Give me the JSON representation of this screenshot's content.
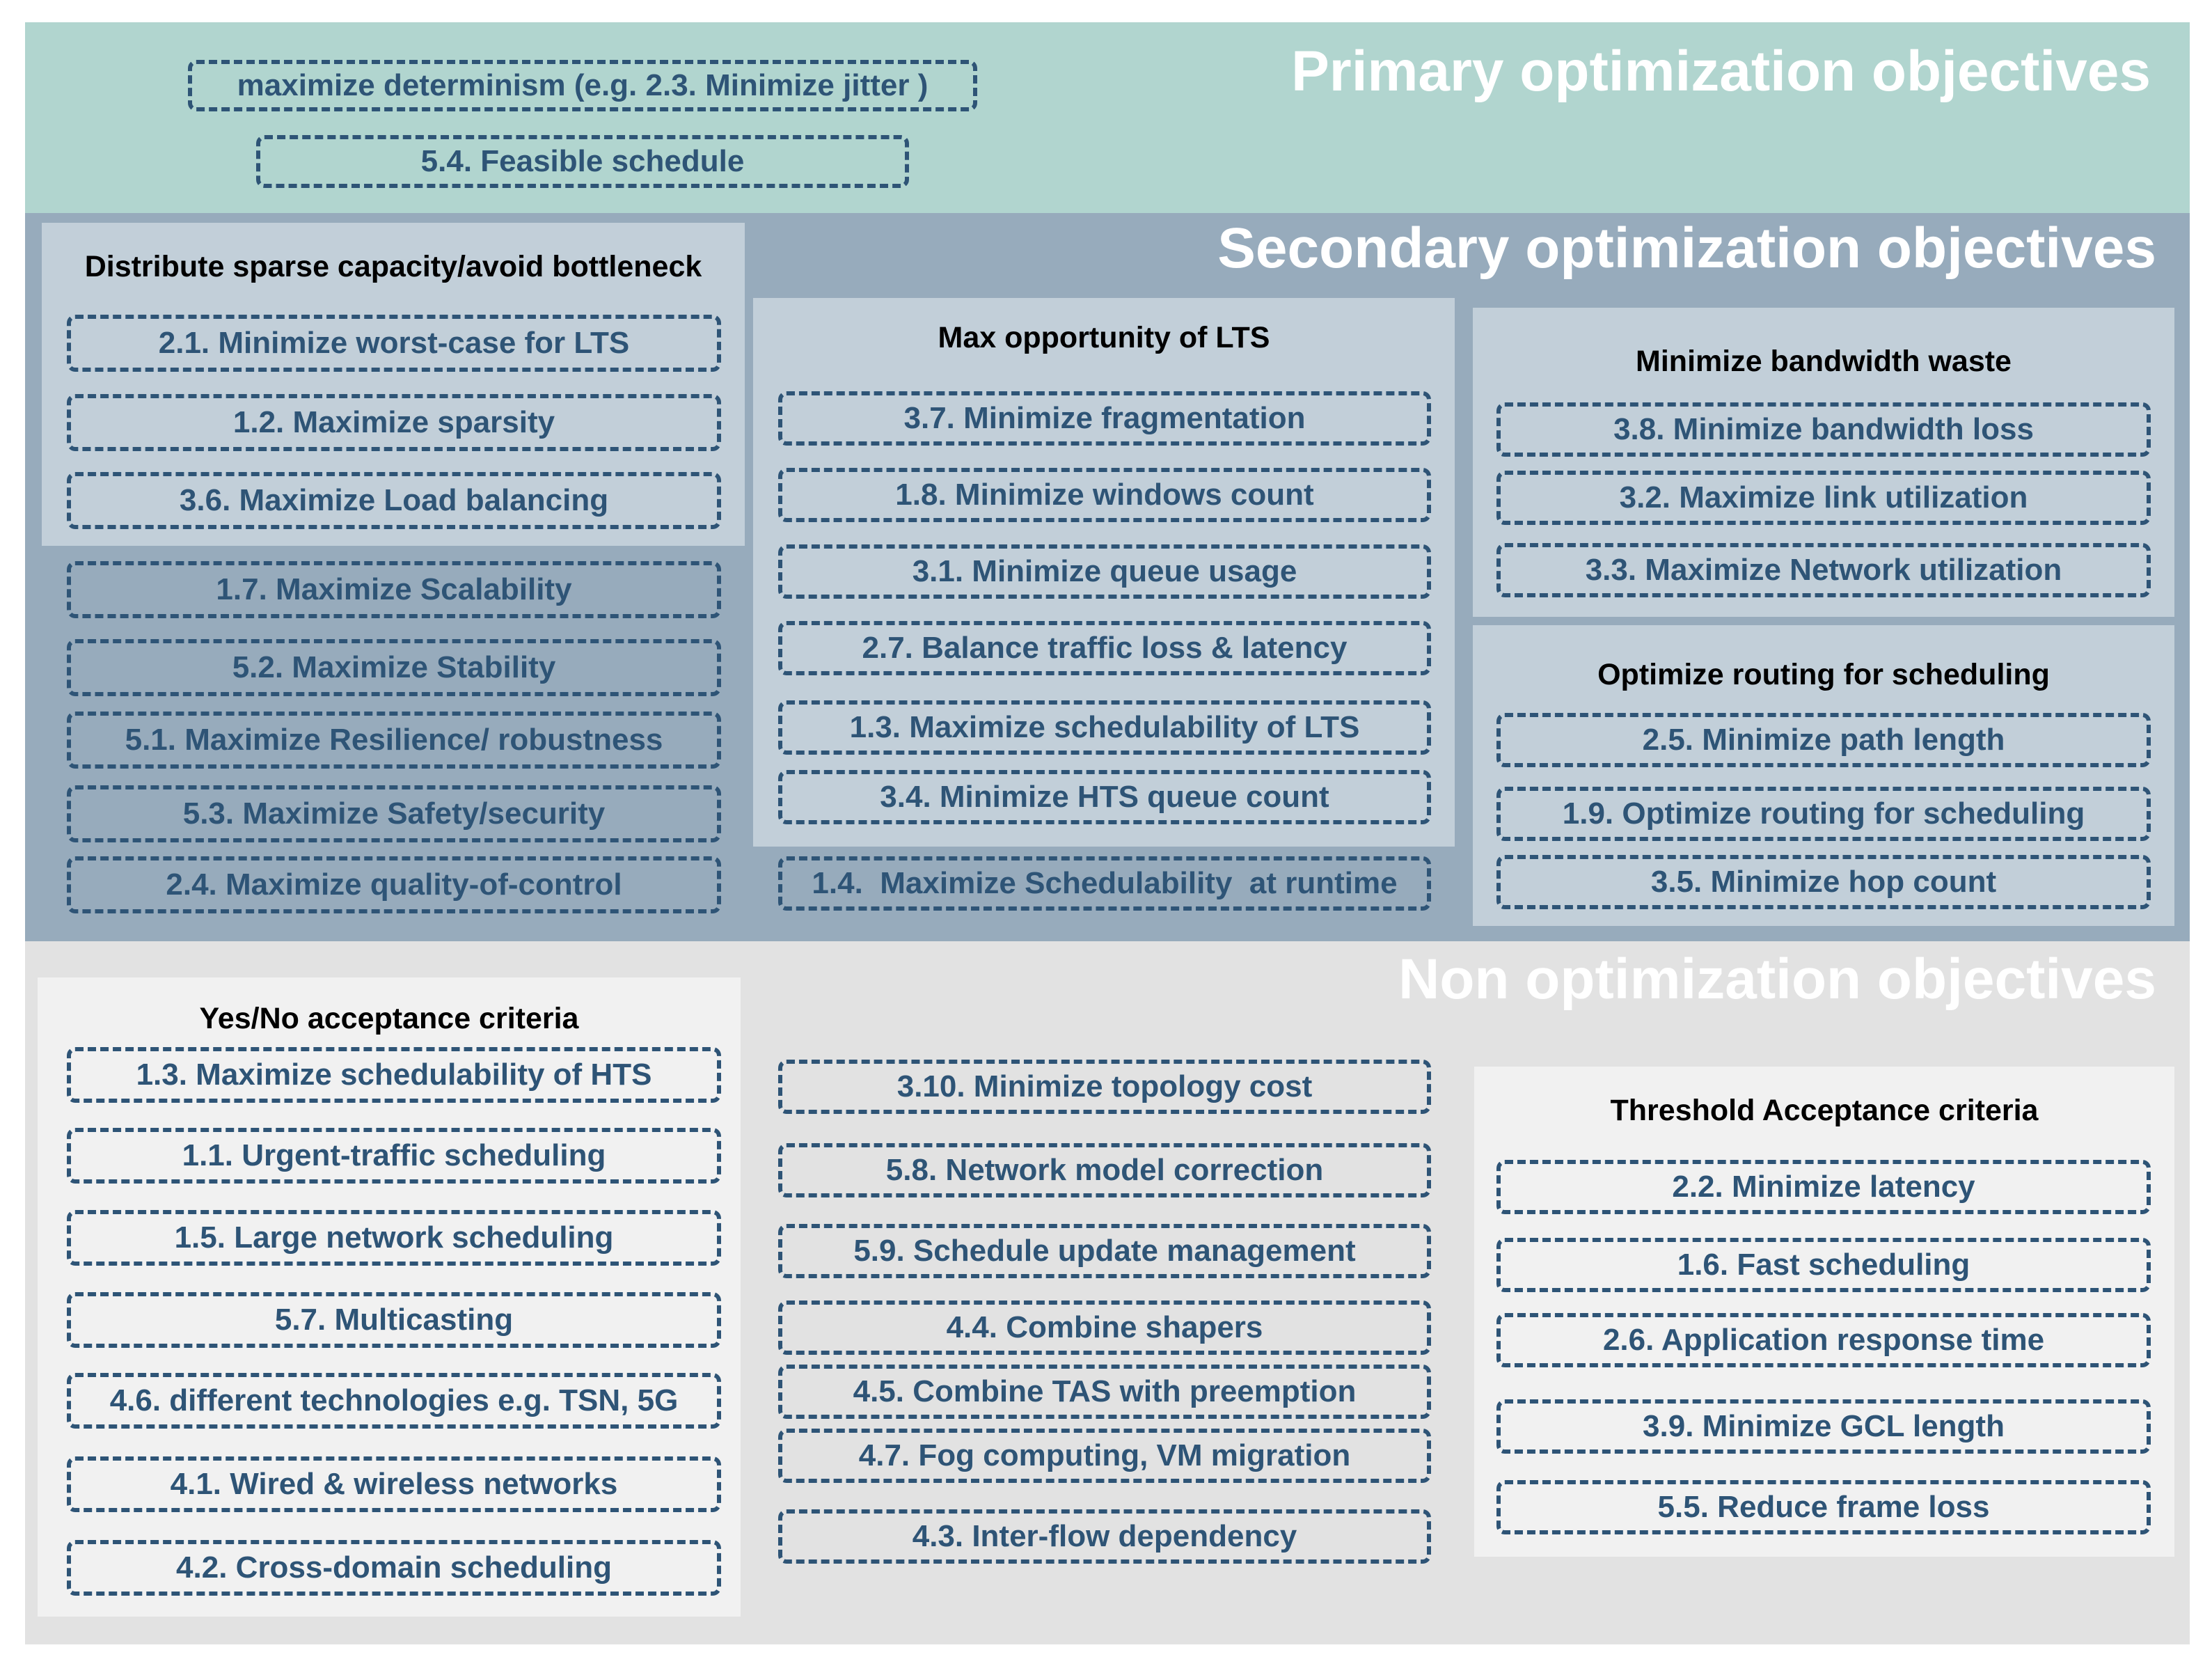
{
  "primary": {
    "title": "Primary optimization objectives",
    "items": [
      "maximize determinism (e.g. 2.3. Minimize jitter )",
      "5.4. Feasible schedule"
    ]
  },
  "secondary": {
    "title": "Secondary optimization objectives",
    "groups": [
      {
        "title": "Distribute sparse capacity/avoid bottleneck",
        "items": [
          "2.1. Minimize worst-case for LTS",
          "1.2. Maximize sparsity",
          "3.6. Maximize Load balancing"
        ]
      },
      {
        "title": "Max opportunity of LTS",
        "items": [
          "3.7. Minimize fragmentation",
          "1.8. Minimize windows count",
          "3.1. Minimize queue usage",
          "2.7. Balance traffic loss & latency",
          "1.3. Maximize schedulability of LTS",
          "3.4. Minimize HTS queue count"
        ]
      },
      {
        "title": "Minimize bandwidth waste",
        "items": [
          "3.8. Minimize bandwidth loss",
          "3.2. Maximize link utilization",
          "3.3. Maximize Network utilization"
        ]
      },
      {
        "title": "Optimize routing for scheduling",
        "items": [
          "2.5. Minimize path length",
          "1.9. Optimize routing for scheduling",
          "3.5. Minimize hop count"
        ]
      }
    ],
    "ungrouped_left": [
      "1.7. Maximize Scalability",
      "5.2. Maximize Stability",
      "5.1. Maximize Resilience/ robustness",
      "5.3. Maximize Safety/security",
      "2.4. Maximize quality-of-control"
    ],
    "ungrouped_middle": [
      "1.4.  Maximize Schedulability  at runtime"
    ]
  },
  "non": {
    "title": "Non optimization objectives",
    "groups": [
      {
        "title": "Yes/No acceptance criteria",
        "items": [
          "1.3. Maximize schedulability of HTS",
          "1.1. Urgent-traffic scheduling",
          "1.5. Large network scheduling",
          "5.7. Multicasting",
          "4.6. different technologies e.g. TSN, 5G",
          "4.1. Wired & wireless networks",
          "4.2. Cross-domain scheduling"
        ]
      },
      {
        "title": "Threshold Acceptance criteria",
        "items": [
          "2.2. Minimize latency",
          "1.6. Fast scheduling",
          "2.6. Application response time",
          "3.9. Minimize GCL length",
          "5.5. Reduce frame loss"
        ]
      }
    ],
    "ungrouped_middle": [
      "3.10. Minimize topology cost",
      "5.8. Network model correction",
      "5.9. Schedule update management",
      "4.4. Combine shapers",
      "4.5. Combine TAS with preemption",
      "4.7. Fog computing, VM migration",
      "4.3. Inter-flow dependency"
    ]
  }
}
